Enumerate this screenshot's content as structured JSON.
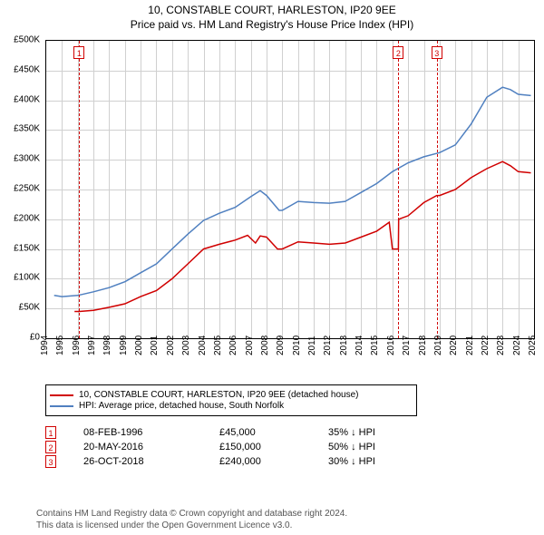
{
  "title_line1": "10, CONSTABLE COURT, HARLESTON, IP20 9EE",
  "title_line2": "Price paid vs. HM Land Registry's House Price Index (HPI)",
  "chart": {
    "type": "line",
    "background_color": "#ffffff",
    "grid_color": "#d0d0d0",
    "y": {
      "min": 0,
      "max": 500000,
      "step": 50000,
      "prefix": "£",
      "suffix": "K",
      "divisor": 1000,
      "fontsize": 10
    },
    "x": {
      "min": 1994,
      "max": 2025,
      "step": 1,
      "fontsize": 10,
      "rotate": -90
    },
    "series": [
      {
        "key": "price_paid",
        "legend": "10, CONSTABLE COURT, HARLESTON, IP20 9EE (detached house)",
        "color": "#d00000",
        "line_width": 1.5,
        "points": [
          [
            1995.8,
            45000
          ],
          [
            1996.1,
            45000
          ],
          [
            1997,
            47000
          ],
          [
            1998,
            52000
          ],
          [
            1999,
            58000
          ],
          [
            2000,
            70000
          ],
          [
            2001,
            80000
          ],
          [
            2002,
            100000
          ],
          [
            2003,
            125000
          ],
          [
            2004,
            150000
          ],
          [
            2005,
            158000
          ],
          [
            2006,
            165000
          ],
          [
            2006.8,
            173000
          ],
          [
            2007.3,
            160000
          ],
          [
            2007.6,
            172000
          ],
          [
            2008,
            170000
          ],
          [
            2008.7,
            150000
          ],
          [
            2009,
            150000
          ],
          [
            2010,
            162000
          ],
          [
            2011,
            160000
          ],
          [
            2012,
            158000
          ],
          [
            2013,
            160000
          ],
          [
            2014,
            170000
          ],
          [
            2015,
            180000
          ],
          [
            2015.8,
            195000
          ],
          [
            2016.0,
            150000
          ],
          [
            2016.38,
            150000
          ],
          [
            2016.4,
            200000
          ],
          [
            2017,
            206000
          ],
          [
            2018,
            228000
          ],
          [
            2018.82,
            240000
          ],
          [
            2019,
            240000
          ],
          [
            2020,
            250000
          ],
          [
            2021,
            270000
          ],
          [
            2022,
            285000
          ],
          [
            2023,
            297000
          ],
          [
            2023.5,
            290000
          ],
          [
            2024,
            280000
          ],
          [
            2024.8,
            278000
          ]
        ]
      },
      {
        "key": "hpi",
        "legend": "HPI: Average price, detached house, South Norfolk",
        "color": "#5080c0",
        "line_width": 1.5,
        "points": [
          [
            1994.5,
            72000
          ],
          [
            1995,
            70000
          ],
          [
            1996,
            72000
          ],
          [
            1997,
            78000
          ],
          [
            1998,
            85000
          ],
          [
            1999,
            95000
          ],
          [
            2000,
            110000
          ],
          [
            2001,
            125000
          ],
          [
            2002,
            150000
          ],
          [
            2003,
            175000
          ],
          [
            2004,
            198000
          ],
          [
            2005,
            210000
          ],
          [
            2006,
            220000
          ],
          [
            2007,
            238000
          ],
          [
            2007.6,
            248000
          ],
          [
            2008,
            240000
          ],
          [
            2008.8,
            215000
          ],
          [
            2009,
            215000
          ],
          [
            2010,
            230000
          ],
          [
            2011,
            228000
          ],
          [
            2012,
            227000
          ],
          [
            2013,
            230000
          ],
          [
            2014,
            245000
          ],
          [
            2015,
            260000
          ],
          [
            2016,
            280000
          ],
          [
            2017,
            295000
          ],
          [
            2018,
            305000
          ],
          [
            2019,
            312000
          ],
          [
            2020,
            325000
          ],
          [
            2021,
            360000
          ],
          [
            2022,
            405000
          ],
          [
            2023,
            422000
          ],
          [
            2023.5,
            418000
          ],
          [
            2024,
            410000
          ],
          [
            2024.8,
            408000
          ]
        ]
      }
    ],
    "sale_markers": [
      {
        "n": "1",
        "year": 1996.1,
        "date": "08-FEB-1996",
        "price": "£45,000",
        "delta": "35% ↓ HPI"
      },
      {
        "n": "2",
        "year": 2016.38,
        "date": "20-MAY-2016",
        "price": "£150,000",
        "delta": "50% ↓ HPI"
      },
      {
        "n": "3",
        "year": 2018.82,
        "date": "26-OCT-2018",
        "price": "£240,000",
        "delta": "30% ↓ HPI"
      }
    ]
  },
  "footer_line1": "Contains HM Land Registry data © Crown copyright and database right 2024.",
  "footer_line2": "This data is licensed under the Open Government Licence v3.0."
}
